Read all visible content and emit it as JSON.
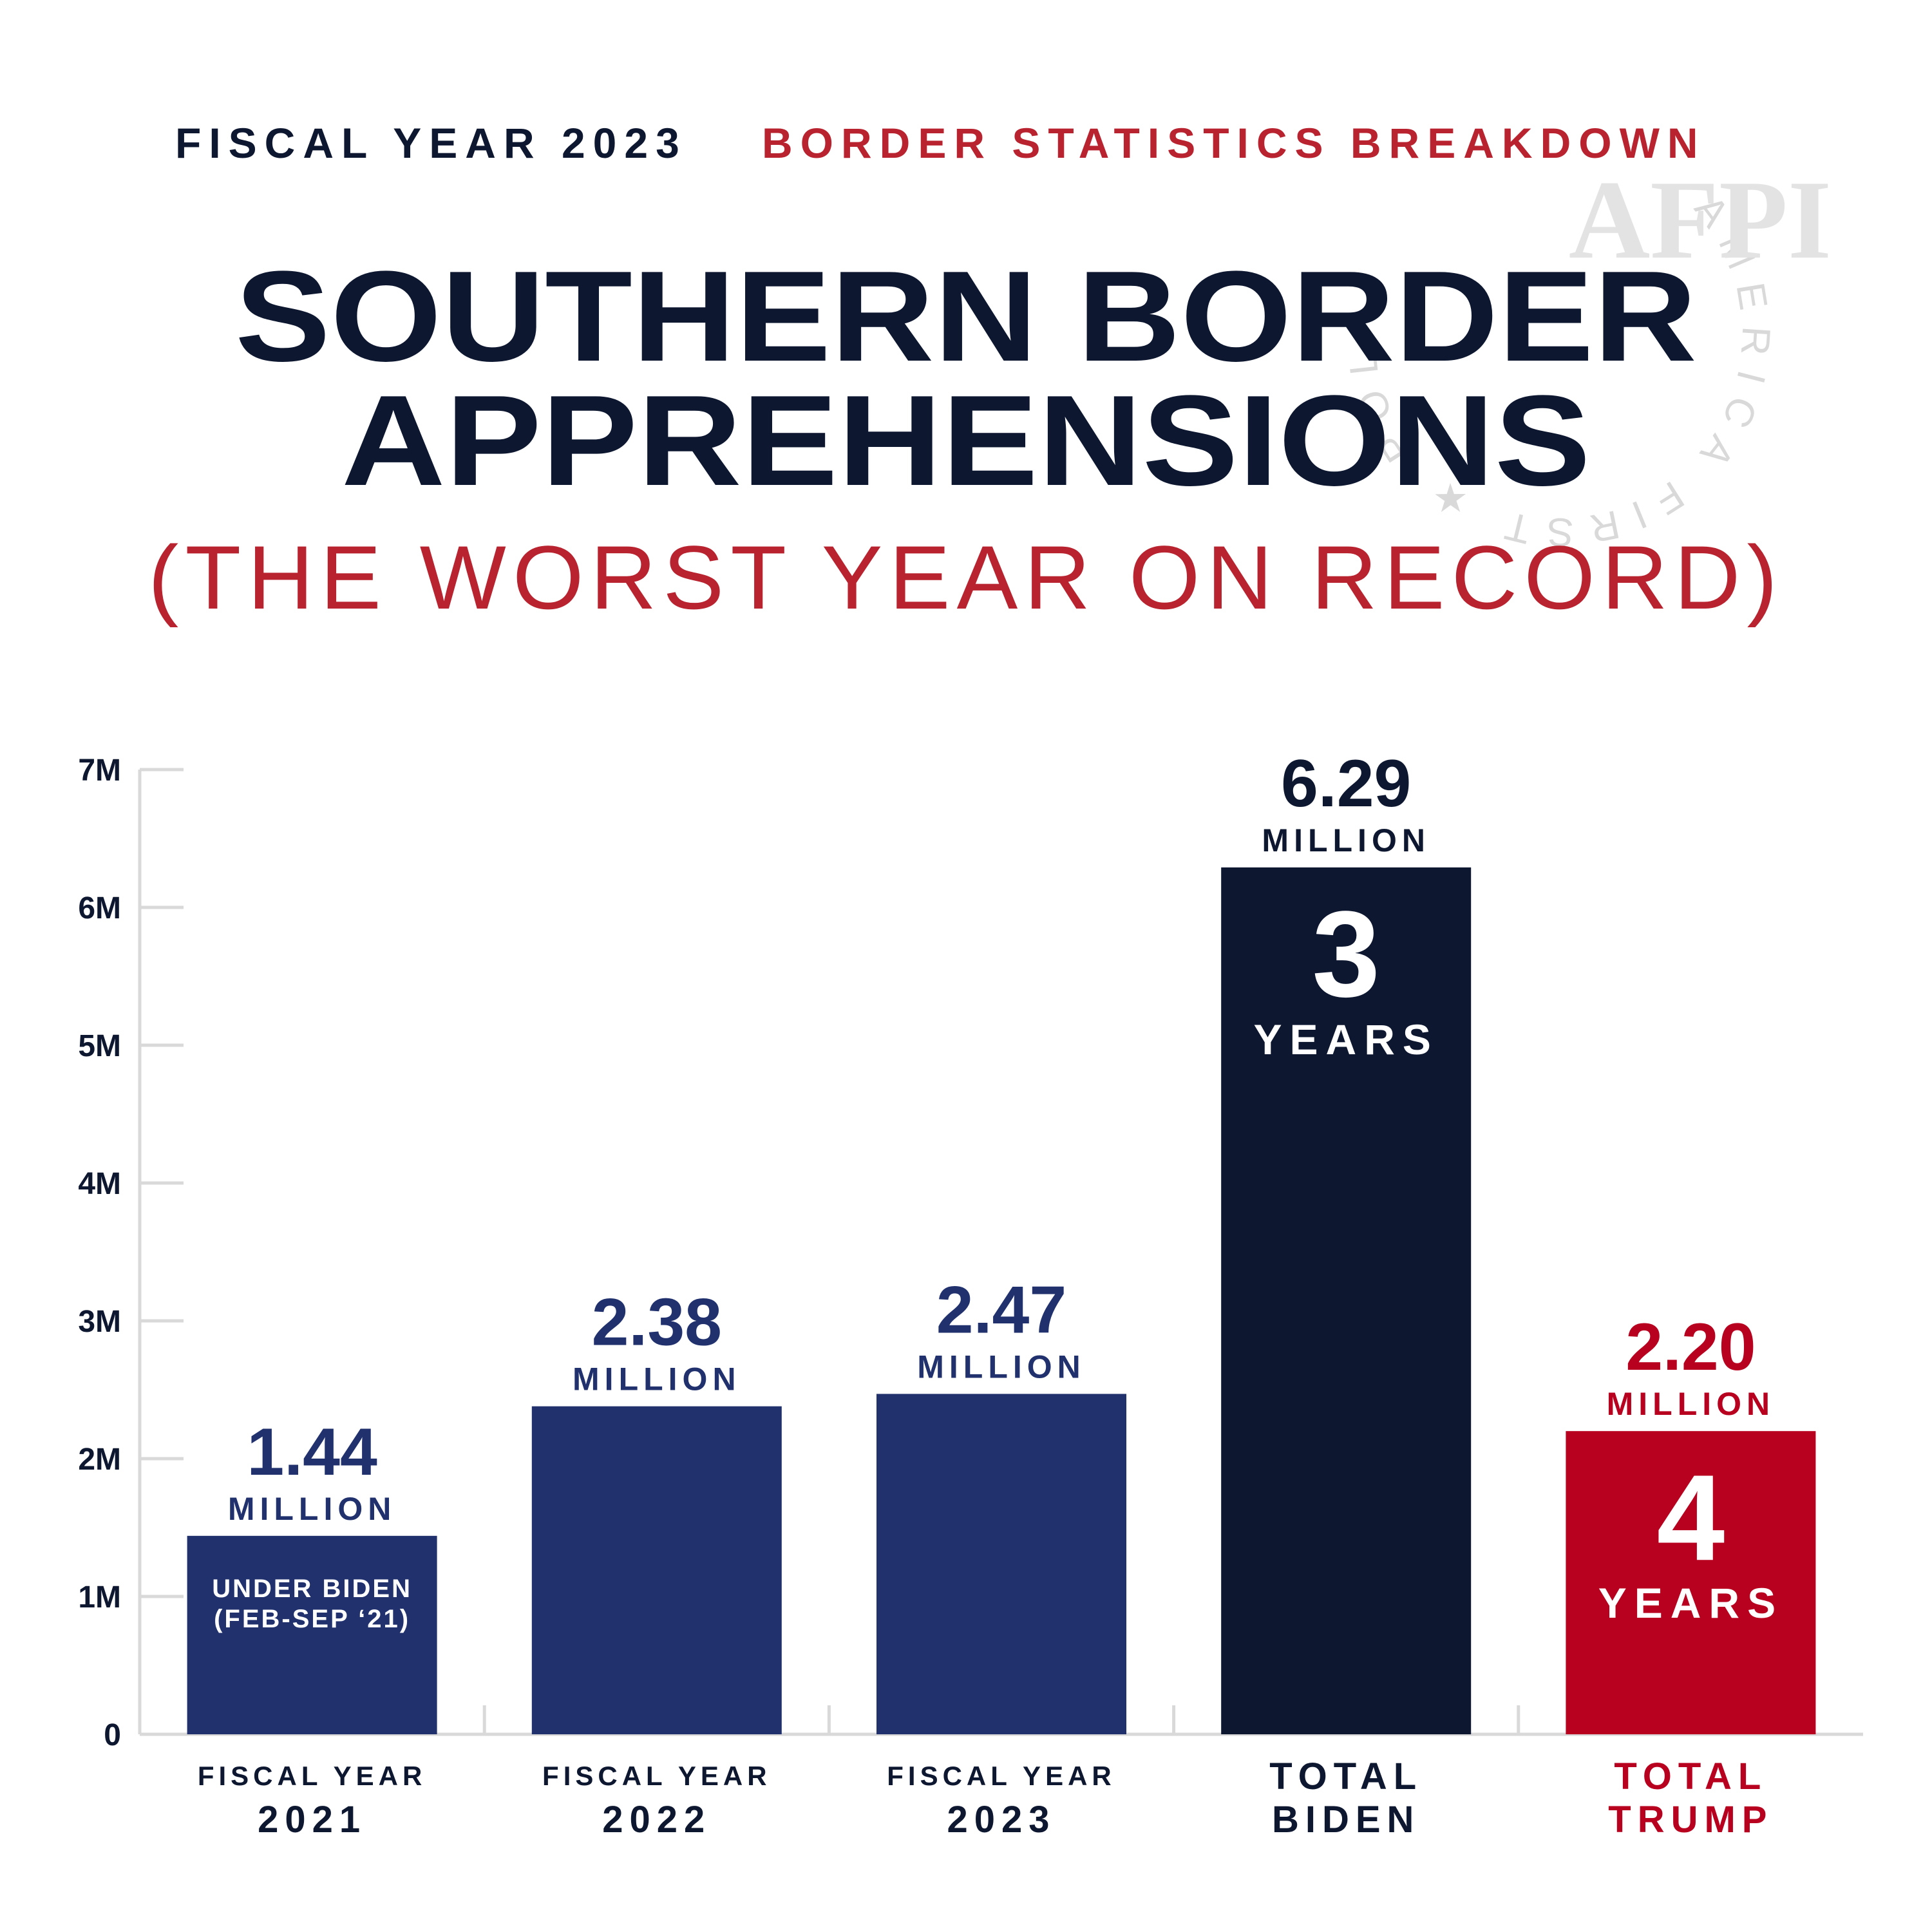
{
  "header": {
    "kicker_left": "FISCAL YEAR 2023",
    "kicker_right": "BORDER STATISTICS BREAKDOWN",
    "title_line1": "SOUTHERN BORDER",
    "title_line2": "APPREHENSIONS",
    "subtitle": "(THE WORST YEAR ON RECORD)"
  },
  "seal": {
    "ring_text": "AMERICA FIRST ★ POLICY INSTITUTE",
    "logo_text": "AFPI"
  },
  "colors": {
    "navy": "#0d1730",
    "blue": "#20316e",
    "red": "#b8001f",
    "axis": "#d9d9d9",
    "seal": "#d9d9d9"
  },
  "chart_data": {
    "type": "bar",
    "ylim": [
      0,
      7
    ],
    "y_ticks": [
      {
        "value": 0,
        "label": "0"
      },
      {
        "value": 1,
        "label": "1M"
      },
      {
        "value": 2,
        "label": "2M"
      },
      {
        "value": 3,
        "label": "3M"
      },
      {
        "value": 4,
        "label": "4M"
      },
      {
        "value": 5,
        "label": "5M"
      },
      {
        "value": 6,
        "label": "6M"
      },
      {
        "value": 7,
        "label": "7M"
      }
    ],
    "bars": [
      {
        "value": 1.44,
        "value_label": "1.44",
        "unit_label": "MILLION",
        "cat_line1": "FISCAL YEAR",
        "cat_line2": "2021",
        "inner_line1": "UNDER BIDEN",
        "inner_line2": "(FEB-SEP ‘21)",
        "color": "#20316e",
        "label_color": "#20316e",
        "cat_color": "#0d1730",
        "cat_style": "small"
      },
      {
        "value": 2.38,
        "value_label": "2.38",
        "unit_label": "MILLION",
        "cat_line1": "FISCAL YEAR",
        "cat_line2": "2022",
        "color": "#20316e",
        "label_color": "#20316e",
        "cat_color": "#0d1730",
        "cat_style": "small"
      },
      {
        "value": 2.47,
        "value_label": "2.47",
        "unit_label": "MILLION",
        "cat_line1": "FISCAL YEAR",
        "cat_line2": "2023",
        "color": "#20316e",
        "label_color": "#20316e",
        "cat_color": "#0d1730",
        "cat_style": "small"
      },
      {
        "value": 6.29,
        "value_label": "6.29",
        "unit_label": "MILLION",
        "cat_line1": "TOTAL",
        "cat_line2": "BIDEN",
        "inner_big": "3",
        "inner_small": "YEARS",
        "color": "#0d1730",
        "label_color": "#0d1730",
        "cat_color": "#0d1730",
        "cat_style": "large"
      },
      {
        "value": 2.2,
        "value_label": "2.20",
        "unit_label": "MILLION",
        "cat_line1": "TOTAL",
        "cat_line2": "TRUMP",
        "inner_big": "4",
        "inner_small": "YEARS",
        "color": "#b8001f",
        "label_color": "#b8001f",
        "cat_color": "#b8001f",
        "cat_style": "large"
      }
    ]
  }
}
